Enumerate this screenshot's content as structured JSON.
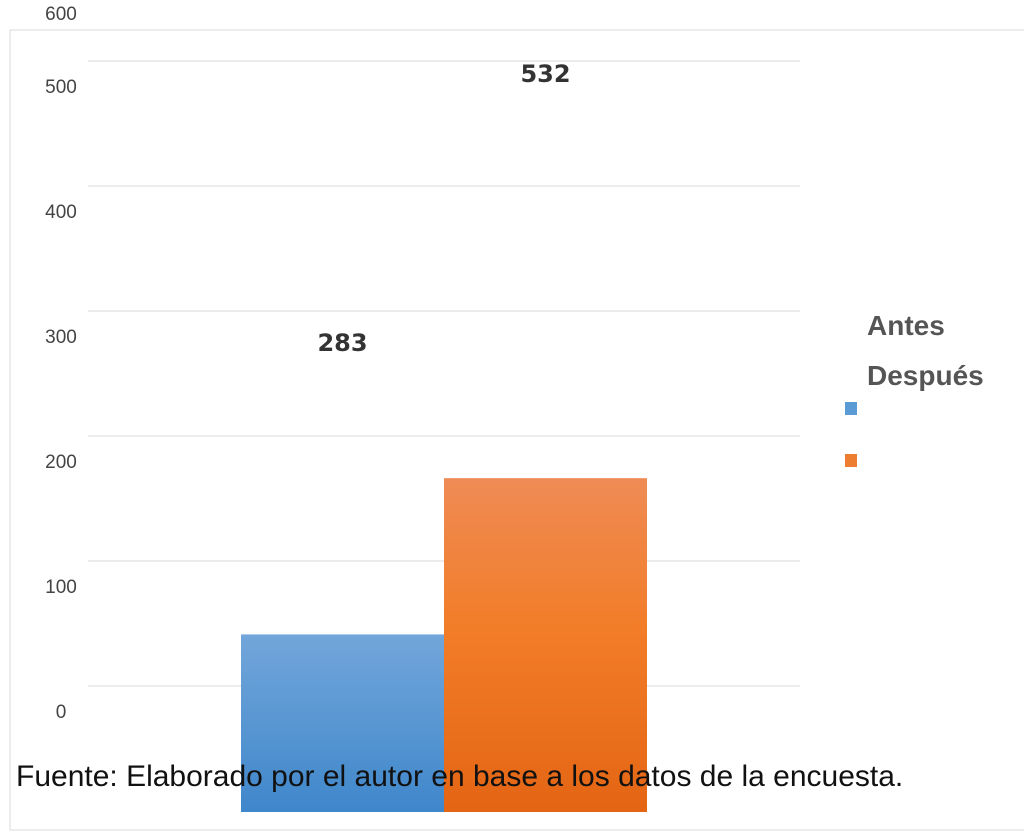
{
  "chart_data": {
    "type": "bar",
    "categories": [
      ""
    ],
    "series": [
      {
        "name": "Antes",
        "values": [
          283
        ],
        "color": "#5b9bd5"
      },
      {
        "name": "Después",
        "values": [
          532
        ],
        "color": "#ed7d31"
      }
    ],
    "y_ticks": [
      "0",
      "100",
      "200",
      "300",
      "400",
      "500",
      "600"
    ],
    "data_labels": [
      "283",
      "532"
    ],
    "ylim": [
      0,
      600
    ],
    "grid": true,
    "legend_position": "right"
  },
  "source_note": "Fuente: Elaborado por el autor en base a los datos de la encuesta."
}
